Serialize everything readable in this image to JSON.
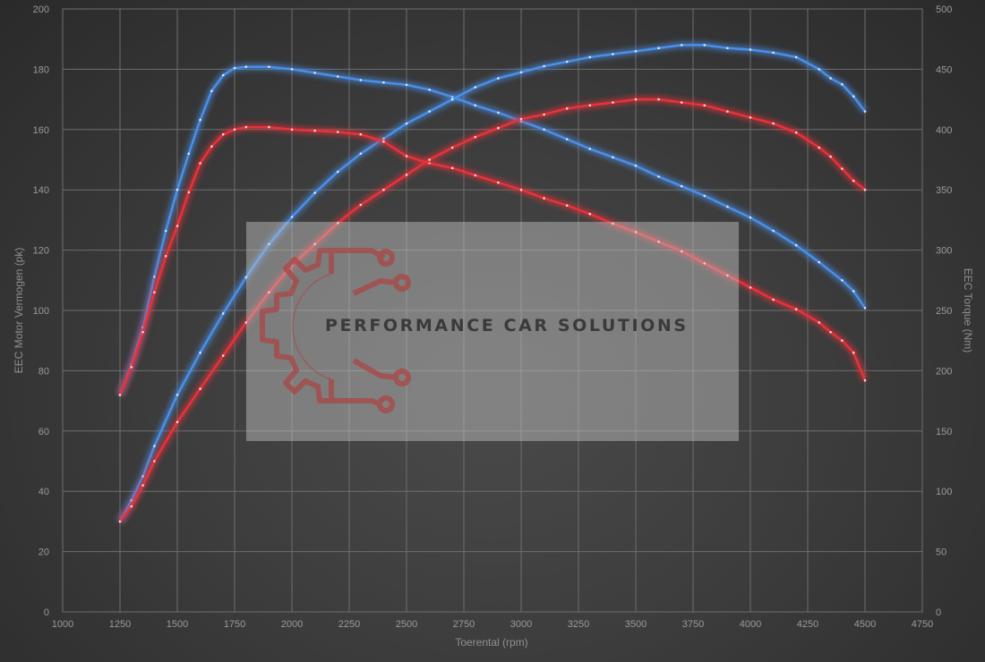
{
  "chart_data": {
    "type": "line",
    "x_axis": {
      "label": "Toerental (rpm)",
      "min": 1000,
      "max": 4750,
      "ticks": [
        1000,
        1250,
        1500,
        1750,
        2000,
        2250,
        2500,
        2750,
        3000,
        3250,
        3500,
        3750,
        4000,
        4250,
        4500,
        4750
      ]
    },
    "y_left": {
      "label": "EEC Motor Vermogen (pk)",
      "min": 0,
      "max": 200,
      "ticks": [
        0,
        20,
        40,
        60,
        80,
        100,
        120,
        140,
        160,
        180,
        200
      ]
    },
    "y_right": {
      "label": "EEC Torque (Nm)",
      "min": 0,
      "max": 500,
      "ticks": [
        0,
        50,
        100,
        150,
        200,
        250,
        300,
        350,
        400,
        450,
        500
      ]
    },
    "grid": true,
    "series": [
      {
        "color": "#4a8fe8",
        "axis": "right",
        "points": [
          [
            1250,
            180
          ],
          [
            1300,
            205
          ],
          [
            1350,
            236
          ],
          [
            1400,
            278
          ],
          [
            1450,
            316
          ],
          [
            1500,
            350
          ],
          [
            1550,
            380
          ],
          [
            1600,
            408
          ],
          [
            1650,
            432
          ],
          [
            1700,
            445
          ],
          [
            1750,
            451
          ],
          [
            1800,
            452
          ],
          [
            1900,
            452
          ],
          [
            2000,
            450
          ],
          [
            2100,
            447
          ],
          [
            2200,
            444
          ],
          [
            2300,
            441
          ],
          [
            2400,
            439
          ],
          [
            2500,
            437
          ],
          [
            2600,
            433
          ],
          [
            2700,
            427
          ],
          [
            2800,
            420
          ],
          [
            2900,
            414
          ],
          [
            3000,
            407
          ],
          [
            3100,
            400
          ],
          [
            3200,
            392
          ],
          [
            3300,
            384
          ],
          [
            3400,
            377
          ],
          [
            3500,
            370
          ],
          [
            3600,
            361
          ],
          [
            3700,
            353
          ],
          [
            3800,
            345
          ],
          [
            3900,
            336
          ],
          [
            4000,
            327
          ],
          [
            4100,
            316
          ],
          [
            4200,
            304
          ],
          [
            4300,
            290
          ],
          [
            4400,
            275
          ],
          [
            4450,
            266
          ],
          [
            4500,
            252
          ]
        ]
      },
      {
        "color": "#4a8fe8",
        "axis": "left",
        "points": [
          [
            1250,
            30
          ],
          [
            1300,
            37
          ],
          [
            1350,
            45
          ],
          [
            1400,
            55
          ],
          [
            1500,
            72
          ],
          [
            1600,
            86
          ],
          [
            1700,
            99
          ],
          [
            1800,
            111
          ],
          [
            1900,
            122
          ],
          [
            2000,
            131
          ],
          [
            2100,
            139
          ],
          [
            2200,
            146
          ],
          [
            2300,
            152
          ],
          [
            2400,
            157
          ],
          [
            2500,
            162
          ],
          [
            2600,
            166
          ],
          [
            2700,
            170
          ],
          [
            2800,
            174
          ],
          [
            2900,
            177
          ],
          [
            3000,
            179
          ],
          [
            3100,
            181
          ],
          [
            3200,
            182.5
          ],
          [
            3300,
            184
          ],
          [
            3400,
            185
          ],
          [
            3500,
            186
          ],
          [
            3600,
            187
          ],
          [
            3700,
            188
          ],
          [
            3800,
            188
          ],
          [
            3900,
            187
          ],
          [
            4000,
            186.5
          ],
          [
            4100,
            185.5
          ],
          [
            4200,
            184
          ],
          [
            4300,
            180
          ],
          [
            4350,
            177
          ],
          [
            4400,
            175
          ],
          [
            4450,
            171
          ],
          [
            4500,
            166
          ]
        ]
      },
      {
        "color": "#e8323a",
        "axis": "right",
        "points": [
          [
            1250,
            180
          ],
          [
            1300,
            203
          ],
          [
            1350,
            232
          ],
          [
            1400,
            265
          ],
          [
            1450,
            295
          ],
          [
            1500,
            320
          ],
          [
            1550,
            348
          ],
          [
            1600,
            372
          ],
          [
            1650,
            386
          ],
          [
            1700,
            396
          ],
          [
            1750,
            400
          ],
          [
            1800,
            402
          ],
          [
            1900,
            402
          ],
          [
            2000,
            400
          ],
          [
            2100,
            399
          ],
          [
            2200,
            398
          ],
          [
            2300,
            396
          ],
          [
            2400,
            390
          ],
          [
            2500,
            378
          ],
          [
            2600,
            372
          ],
          [
            2700,
            368
          ],
          [
            2800,
            362
          ],
          [
            2900,
            356
          ],
          [
            3000,
            350
          ],
          [
            3100,
            343
          ],
          [
            3200,
            337
          ],
          [
            3300,
            330
          ],
          [
            3400,
            322
          ],
          [
            3500,
            315
          ],
          [
            3600,
            307
          ],
          [
            3700,
            299
          ],
          [
            3800,
            289
          ],
          [
            3900,
            279
          ],
          [
            4000,
            269
          ],
          [
            4100,
            259
          ],
          [
            4200,
            251
          ],
          [
            4300,
            240
          ],
          [
            4350,
            232
          ],
          [
            4400,
            225
          ],
          [
            4450,
            215
          ],
          [
            4500,
            192
          ]
        ]
      },
      {
        "color": "#e8323a",
        "axis": "left",
        "points": [
          [
            1250,
            30
          ],
          [
            1300,
            35
          ],
          [
            1350,
            42
          ],
          [
            1400,
            50
          ],
          [
            1500,
            63
          ],
          [
            1600,
            74
          ],
          [
            1700,
            85
          ],
          [
            1800,
            96
          ],
          [
            1900,
            106
          ],
          [
            2000,
            115
          ],
          [
            2100,
            122
          ],
          [
            2200,
            129
          ],
          [
            2300,
            135
          ],
          [
            2400,
            140
          ],
          [
            2500,
            145
          ],
          [
            2600,
            150
          ],
          [
            2700,
            154
          ],
          [
            2800,
            157.5
          ],
          [
            2900,
            160.5
          ],
          [
            3000,
            163.5
          ],
          [
            3100,
            165
          ],
          [
            3200,
            167
          ],
          [
            3300,
            168
          ],
          [
            3400,
            169
          ],
          [
            3500,
            170
          ],
          [
            3600,
            170
          ],
          [
            3700,
            169
          ],
          [
            3800,
            168
          ],
          [
            3900,
            166
          ],
          [
            4000,
            164
          ],
          [
            4100,
            162
          ],
          [
            4200,
            159
          ],
          [
            4300,
            154
          ],
          [
            4350,
            151
          ],
          [
            4400,
            147
          ],
          [
            4450,
            143
          ],
          [
            4500,
            140
          ]
        ]
      }
    ]
  },
  "watermark": {
    "text": "PERFORMANCE CAR SOLUTIONS"
  }
}
